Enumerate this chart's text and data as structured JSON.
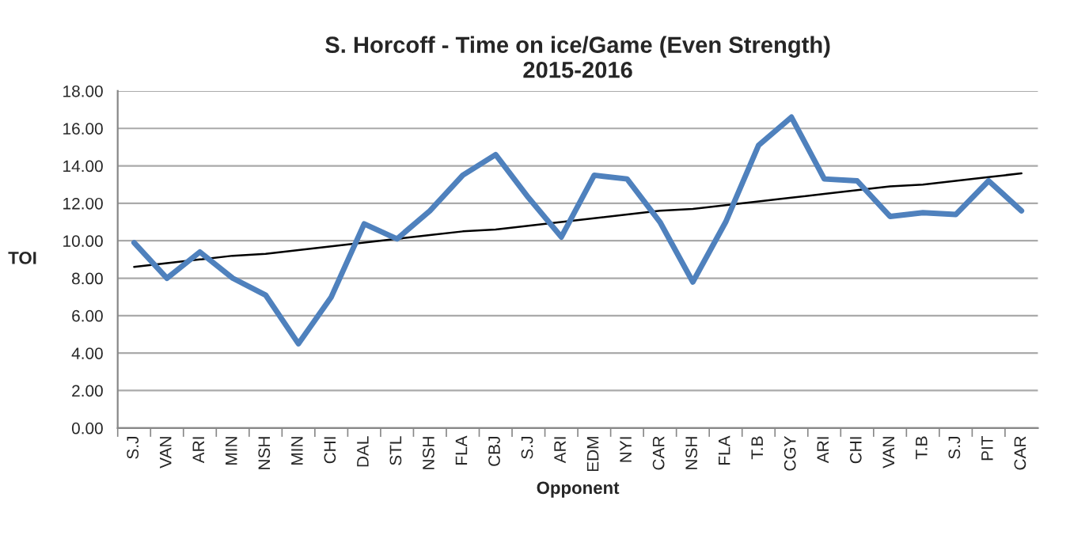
{
  "chart_data": {
    "type": "line",
    "title": "S. Horcoff - Time on ice/Game (Even Strength)\n2015-2016",
    "xlabel": "Opponent",
    "ylabel": "TOI",
    "categories": [
      "S.J",
      "VAN",
      "ARI",
      "MIN",
      "NSH",
      "MIN",
      "CHI",
      "DAL",
      "STL",
      "NSH",
      "FLA",
      "CBJ",
      "S.J",
      "ARI",
      "EDM",
      "NYI",
      "CAR",
      "NSH",
      "FLA",
      "T.B",
      "CGY",
      "ARI",
      "CHI",
      "VAN",
      "T.B",
      "S.J",
      "PIT",
      "CAR"
    ],
    "series": [
      {
        "color": "#4f81bd",
        "values": [
          9.9,
          8.0,
          9.4,
          8.0,
          7.1,
          4.5,
          7.0,
          10.9,
          10.1,
          11.6,
          13.5,
          14.6,
          12.3,
          10.2,
          13.5,
          13.3,
          11.0,
          7.8,
          11.0,
          15.1,
          16.6,
          13.3,
          13.2,
          11.3,
          11.5,
          11.4,
          13.2,
          11.6
        ]
      },
      {
        "color": "#000000",
        "values": [
          8.6,
          8.8,
          9.0,
          9.2,
          9.3,
          9.5,
          9.7,
          9.9,
          10.1,
          10.3,
          10.5,
          10.6,
          10.8,
          11.0,
          11.2,
          11.4,
          11.6,
          11.7,
          11.9,
          12.1,
          12.3,
          12.5,
          12.7,
          12.9,
          13.0,
          13.2,
          13.4,
          13.6
        ]
      }
    ],
    "ylim": [
      0,
      18
    ],
    "yticks": [
      {
        "value": 0,
        "label": "0.00"
      },
      {
        "value": 2,
        "label": "2.00"
      },
      {
        "value": 4,
        "label": "4.00"
      },
      {
        "value": 6,
        "label": "6.00"
      },
      {
        "value": 8,
        "label": "8.00"
      },
      {
        "value": 10,
        "label": "10.00"
      },
      {
        "value": 12,
        "label": "12.00"
      },
      {
        "value": 14,
        "label": "14.00"
      },
      {
        "value": 16,
        "label": "16.00"
      },
      {
        "value": 18,
        "label": "18.00"
      }
    ],
    "grid": "y",
    "marker": "none",
    "line_style": "solid"
  }
}
